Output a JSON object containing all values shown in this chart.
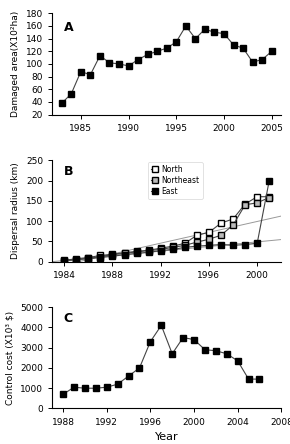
{
  "panel_A": {
    "years": [
      1983,
      1984,
      1985,
      1986,
      1987,
      1988,
      1989,
      1990,
      1991,
      1992,
      1993,
      1994,
      1995,
      1996,
      1997,
      1998,
      1999,
      2000,
      2001,
      2002,
      2003,
      2004,
      2005
    ],
    "values": [
      38,
      53,
      88,
      83,
      113,
      102,
      100,
      97,
      107,
      115,
      120,
      125,
      135,
      160,
      140,
      155,
      150,
      148,
      130,
      125,
      103,
      107,
      120
    ],
    "ylabel": "Damaged area(X10²ha)",
    "xlim": [
      1982,
      2006
    ],
    "ylim": [
      20,
      180
    ],
    "yticks": [
      20,
      40,
      60,
      80,
      100,
      120,
      140,
      160,
      180
    ],
    "xticks": [
      1985,
      1990,
      1995,
      2000,
      2005
    ],
    "label": "A"
  },
  "panel_B": {
    "north_years": [
      1984,
      1985,
      1986,
      1987,
      1988,
      1989,
      1990,
      1991,
      1992,
      1993,
      1994,
      1995,
      1996,
      1997,
      1998,
      1999,
      2000,
      2001
    ],
    "north_values": [
      3,
      7,
      10,
      15,
      18,
      22,
      25,
      28,
      33,
      38,
      45,
      65,
      72,
      95,
      105,
      142,
      160,
      160
    ],
    "northeast_years": [
      1984,
      1985,
      1986,
      1987,
      1988,
      1989,
      1990,
      1991,
      1992,
      1993,
      1994,
      1995,
      1996,
      1997,
      1998,
      1999,
      2000,
      2001
    ],
    "northeast_values": [
      2,
      5,
      8,
      12,
      17,
      20,
      24,
      27,
      30,
      35,
      40,
      48,
      55,
      65,
      90,
      140,
      145,
      158
    ],
    "east_years": [
      1984,
      1985,
      1986,
      1987,
      1988,
      1989,
      1990,
      1991,
      1992,
      1993,
      1994,
      1995,
      1996,
      1997,
      1998,
      1999,
      2000,
      2001
    ],
    "east_values": [
      2,
      5,
      7,
      10,
      13,
      17,
      20,
      23,
      27,
      30,
      35,
      38,
      40,
      42,
      40,
      42,
      45,
      200
    ],
    "ylabel": "Dispersal radius (km)",
    "xlim": [
      1983,
      2002
    ],
    "ylim": [
      0,
      250
    ],
    "yticks": [
      0,
      50,
      100,
      150,
      200,
      250
    ],
    "xticks": [
      1984,
      1988,
      1992,
      1996,
      2000
    ],
    "label": "B"
  },
  "panel_C": {
    "years": [
      1988,
      1989,
      1990,
      1991,
      1992,
      1993,
      1994,
      1995,
      1996,
      1997,
      1998,
      1999,
      2000,
      2001,
      2002,
      2003,
      2004,
      2005,
      2006
    ],
    "values": [
      700,
      1050,
      1000,
      1000,
      1050,
      1200,
      1600,
      2000,
      3300,
      4100,
      2700,
      3500,
      3400,
      2900,
      2850,
      2700,
      2350,
      1450,
      1450
    ],
    "ylabel": "Control cost (X10³ $)",
    "xlim": [
      1987,
      2008
    ],
    "ylim": [
      0,
      5000
    ],
    "yticks": [
      0,
      1000,
      2000,
      3000,
      4000,
      5000
    ],
    "xticks": [
      1988,
      1992,
      1996,
      2000,
      2004,
      2008
    ],
    "label": "C"
  },
  "xlabel": "Year",
  "line_color": "#444444",
  "marker": "s",
  "markersize": 4,
  "bg_color": "#ffffff",
  "text_color": "#000000"
}
